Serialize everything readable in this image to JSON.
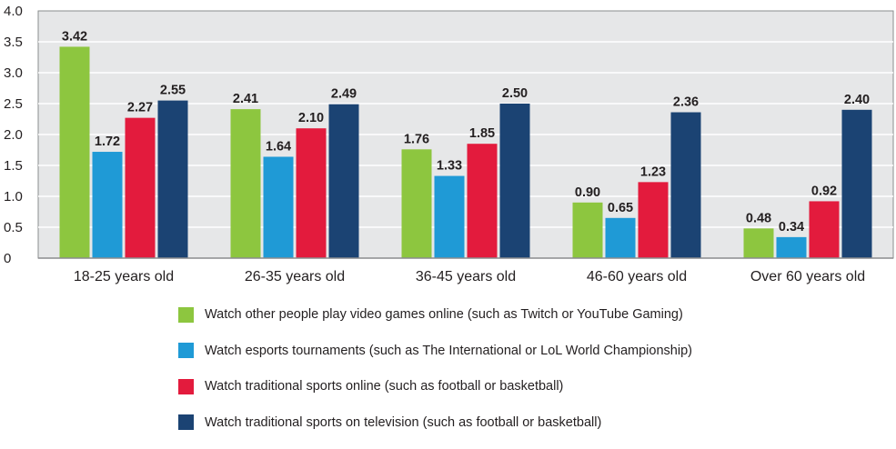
{
  "chart_data": {
    "type": "bar",
    "title": "",
    "xlabel": "",
    "ylabel": "",
    "ylim": [
      0,
      4.0
    ],
    "yticks": [
      "0",
      "0.5",
      "1.0",
      "1.5",
      "2.0",
      "2.5",
      "3.0",
      "3.5",
      "4.0"
    ],
    "ytick_values": [
      0,
      0.5,
      1.0,
      1.5,
      2.0,
      2.5,
      3.0,
      3.5,
      4.0
    ],
    "grid": true,
    "legend_position": "bottom",
    "categories": [
      "18-25 years old",
      "26-35 years old",
      "36-45 years old",
      "46-60 years old",
      "Over 60 years old"
    ],
    "series": [
      {
        "name": "Watch other people play video games online (such as Twitch or YouTube Gaming)",
        "color": "#8dc63f",
        "values": [
          3.42,
          2.41,
          1.76,
          0.9,
          0.48
        ],
        "labels": [
          "3.42",
          "2.41",
          "1.76",
          "0.90",
          "0.48"
        ]
      },
      {
        "name": "Watch esports tournaments (such as The International or LoL World Championship)",
        "color": "#1f9ad6",
        "values": [
          1.72,
          1.64,
          1.33,
          0.65,
          0.34
        ],
        "labels": [
          "1.72",
          "1.64",
          "1.33",
          "0.65",
          "0.34"
        ]
      },
      {
        "name": "Watch traditional sports online (such as football or basketball)",
        "color": "#e31b3d",
        "values": [
          2.27,
          2.1,
          1.85,
          1.23,
          0.92
        ],
        "labels": [
          "2.27",
          "2.10",
          "1.85",
          "1.23",
          "0.92"
        ]
      },
      {
        "name": "Watch traditional sports on television (such as football or basketball)",
        "color": "#1b4373",
        "values": [
          2.55,
          2.49,
          2.5,
          2.36,
          2.4
        ],
        "labels": [
          "2.55",
          "2.49",
          "2.50",
          "2.36",
          "2.40"
        ]
      }
    ]
  },
  "style": {
    "plot_background": "#e6e7e8",
    "grid_color": "#ffffff",
    "axis_color": "#8a8c8e",
    "text_color": "#231f20"
  }
}
